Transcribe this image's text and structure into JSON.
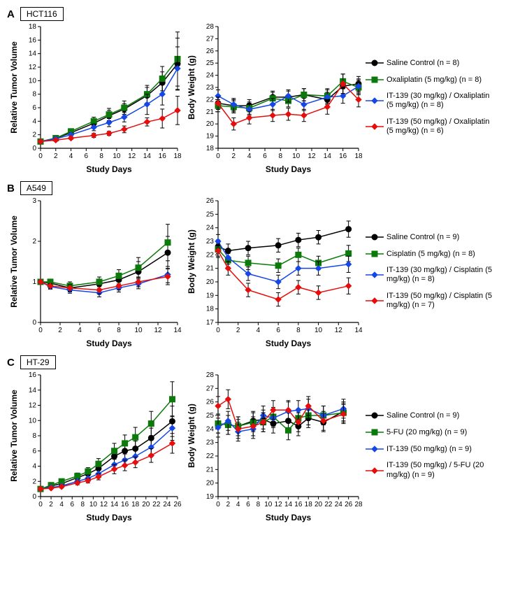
{
  "global": {
    "colors": {
      "saline": "#000000",
      "drug_ref": "#0b7a0b",
      "it30": "#1546e6",
      "it50": "#e60d0d",
      "axis": "#000000",
      "bg": "#ffffff"
    },
    "font_family": "Arial, sans-serif",
    "marker_size": 4,
    "line_width": 1.5,
    "error_cap": 3,
    "axis_tick_fontsize": 10,
    "axis_label_fontsize": 12,
    "panel_letter_fontsize": 15
  },
  "panels": [
    {
      "id": "A",
      "cell_line": "HCT116",
      "legend": [
        {
          "key": "saline",
          "marker": "circle",
          "label": "Saline Control (n = 8)"
        },
        {
          "key": "drug_ref",
          "marker": "square",
          "label": "Oxaliplatin (5 mg/kg) (n = 8)"
        },
        {
          "key": "it30",
          "marker": "diamond",
          "label": "IT-139 (30 mg/kg) / Oxaliplatin (5 mg/kg) (n = 8)"
        },
        {
          "key": "it50",
          "marker": "diamond",
          "label": "IT-139 (50 mg/kg) / Oxaliplatin (5 mg/kg) (n = 6)"
        }
      ],
      "left": {
        "x_label": "Study Days",
        "y_label": "Relative Tumor Volume",
        "xlim": [
          0,
          18
        ],
        "ylim": [
          0,
          18
        ],
        "x_ticks": [
          0,
          2,
          4,
          6,
          8,
          10,
          12,
          14,
          16,
          18
        ],
        "y_ticks": [
          0,
          2,
          4,
          6,
          8,
          10,
          12,
          14,
          16,
          18
        ],
        "x": [
          0,
          2,
          4,
          7,
          9,
          11,
          14,
          16,
          18
        ],
        "series": {
          "saline": {
            "y": [
              1,
              1.5,
              2.3,
              3.7,
              4.8,
              5.8,
              7.8,
              9.7,
              12.5
            ],
            "err": [
              0,
              0.2,
              0.3,
              0.6,
              0.8,
              0.8,
              1.2,
              1.6,
              3.8
            ]
          },
          "drug_ref": {
            "y": [
              1,
              1.5,
              2.5,
              4.0,
              5.0,
              6.0,
              8.0,
              10.3,
              13.2
            ],
            "err": [
              0,
              0.2,
              0.4,
              0.6,
              0.9,
              1.0,
              1.3,
              1.8,
              4.0
            ]
          },
          "it30": {
            "y": [
              1,
              1.4,
              2.0,
              3.1,
              3.8,
              4.6,
              6.5,
              8.0,
              11.8
            ],
            "err": [
              0,
              0.2,
              0.3,
              0.5,
              0.6,
              0.7,
              1.5,
              1.6,
              3.2
            ]
          },
          "it50": {
            "y": [
              1,
              1.2,
              1.5,
              1.9,
              2.2,
              2.8,
              3.9,
              4.4,
              5.6
            ],
            "err": [
              0,
              0.15,
              0.2,
              0.3,
              0.3,
              0.5,
              0.6,
              1.4,
              2.1
            ]
          }
        }
      },
      "right": {
        "x_label": "Study Days",
        "y_label": "Body Weight (g)",
        "xlim": [
          0,
          18
        ],
        "ylim": [
          18,
          28
        ],
        "x_ticks": [
          0,
          2,
          4,
          6,
          8,
          10,
          12,
          14,
          16,
          18
        ],
        "y_ticks": [
          18,
          19,
          20,
          21,
          22,
          23,
          24,
          25,
          26,
          27,
          28
        ],
        "x": [
          0,
          2,
          4,
          7,
          9,
          11,
          14,
          16,
          18
        ],
        "series": {
          "saline": {
            "y": [
              21.7,
              21.5,
              21.5,
              22.2,
              22.2,
              22.4,
              22.0,
              23.1,
              23.3
            ],
            "err": [
              0.5,
              0.5,
              0.5,
              0.5,
              0.5,
              0.5,
              0.6,
              0.6,
              0.6
            ]
          },
          "drug_ref": {
            "y": [
              21.5,
              21.4,
              21.3,
              22.1,
              21.9,
              22.4,
              22.3,
              23.5,
              23.0
            ],
            "err": [
              0.5,
              0.5,
              0.5,
              0.5,
              0.5,
              0.5,
              0.6,
              0.6,
              0.6
            ]
          },
          "it30": {
            "y": [
              22.3,
              21.6,
              21.2,
              21.6,
              22.3,
              21.6,
              22.2,
              22.3,
              23.1
            ],
            "err": [
              0.5,
              0.5,
              0.5,
              0.5,
              0.5,
              0.5,
              0.6,
              0.6,
              0.6
            ]
          },
          "it50": {
            "y": [
              21.7,
              20.0,
              20.5,
              20.7,
              20.8,
              20.7,
              21.4,
              23.3,
              22.0
            ],
            "err": [
              0.5,
              0.5,
              0.5,
              0.5,
              0.5,
              0.5,
              0.6,
              0.8,
              0.6
            ]
          }
        }
      }
    },
    {
      "id": "B",
      "cell_line": "A549",
      "legend": [
        {
          "key": "saline",
          "marker": "circle",
          "label": "Saline Control (n = 9)"
        },
        {
          "key": "drug_ref",
          "marker": "square",
          "label": "Cisplatin (5 mg/kg) (n = 8)"
        },
        {
          "key": "it30",
          "marker": "diamond",
          "label": "IT-139 (30 mg/kg) / Cisplatin (5 mg/kg) (n = 8)"
        },
        {
          "key": "it50",
          "marker": "diamond",
          "label": "IT-139 (50 mg/kg) / Cisplatin (5 mg/kg) (n = 7)"
        }
      ],
      "left": {
        "x_label": "Study Days",
        "y_label": "Relative Tumor Volume",
        "xlim": [
          0,
          14
        ],
        "ylim": [
          0,
          3
        ],
        "x_ticks": [
          0,
          2,
          4,
          6,
          8,
          10,
          12,
          14
        ],
        "y_ticks": [
          0,
          1,
          2,
          3
        ],
        "x": [
          0,
          1,
          3,
          6,
          8,
          10,
          13
        ],
        "series": {
          "saline": {
            "y": [
              1,
              0.97,
              0.85,
              0.95,
              1.05,
              1.25,
              1.72
            ],
            "err": [
              0,
              0.07,
              0.1,
              0.12,
              0.15,
              0.25,
              0.4
            ]
          },
          "drug_ref": {
            "y": [
              1,
              1.0,
              0.9,
              1.0,
              1.15,
              1.35,
              1.97
            ],
            "err": [
              0,
              0.07,
              0.1,
              0.12,
              0.15,
              0.25,
              0.45
            ]
          },
          "it30": {
            "y": [
              1,
              0.88,
              0.8,
              0.73,
              0.85,
              0.95,
              1.18
            ],
            "err": [
              0,
              0.06,
              0.08,
              0.1,
              0.1,
              0.12,
              0.2
            ]
          },
          "it50": {
            "y": [
              1,
              0.9,
              0.85,
              0.8,
              0.9,
              1.0,
              1.13
            ],
            "err": [
              0,
              0.06,
              0.08,
              0.1,
              0.1,
              0.12,
              0.2
            ]
          }
        }
      },
      "right": {
        "x_label": "Study Days",
        "y_label": "Body Weight (g)",
        "xlim": [
          0,
          14
        ],
        "ylim": [
          17,
          26
        ],
        "x_ticks": [
          0,
          2,
          4,
          6,
          8,
          10,
          12,
          14
        ],
        "y_ticks": [
          17,
          18,
          19,
          20,
          21,
          22,
          23,
          24,
          25,
          26
        ],
        "x": [
          0,
          1,
          3,
          6,
          8,
          10,
          13
        ],
        "series": {
          "saline": {
            "y": [
              22.6,
              22.3,
              22.5,
              22.7,
              23.1,
              23.3,
              23.9
            ],
            "err": [
              0.5,
              0.5,
              0.5,
              0.5,
              0.5,
              0.5,
              0.6
            ]
          },
          "drug_ref": {
            "y": [
              22.4,
              21.6,
              21.4,
              21.2,
              22.0,
              21.4,
              22.1
            ],
            "err": [
              0.5,
              0.5,
              0.5,
              0.5,
              0.5,
              0.5,
              0.6
            ]
          },
          "it30": {
            "y": [
              23.0,
              21.8,
              20.6,
              20.0,
              21.0,
              21.0,
              21.3
            ],
            "err": [
              0.5,
              0.5,
              0.5,
              0.5,
              0.5,
              0.5,
              0.6
            ]
          },
          "it50": {
            "y": [
              22.3,
              21.0,
              19.4,
              18.7,
              19.6,
              19.2,
              19.7
            ],
            "err": [
              0.5,
              0.5,
              0.5,
              0.5,
              0.5,
              0.5,
              0.6
            ]
          }
        }
      }
    },
    {
      "id": "C",
      "cell_line": "HT-29",
      "legend": [
        {
          "key": "saline",
          "marker": "circle",
          "label": "Saline Control (n = 9)"
        },
        {
          "key": "drug_ref",
          "marker": "square",
          "label": "5-FU (20 mg/kg) (n = 9)"
        },
        {
          "key": "it30",
          "marker": "diamond",
          "label": "IT-139 (50 mg/kg) (n = 9)"
        },
        {
          "key": "it50",
          "marker": "diamond",
          "label": "IT-139 (50 mg/kg) / 5-FU (20 mg/kg) (n = 9)"
        }
      ],
      "left": {
        "x_label": "Study Days",
        "y_label": "Relative Tumor Volume",
        "xlim": [
          0,
          26
        ],
        "ylim": [
          0,
          16
        ],
        "x_ticks": [
          0,
          2,
          4,
          6,
          8,
          10,
          12,
          14,
          16,
          18,
          20,
          22,
          24,
          26
        ],
        "y_ticks": [
          0,
          2,
          4,
          6,
          8,
          10,
          12,
          14,
          16
        ],
        "x": [
          0,
          2,
          4,
          7,
          9,
          11,
          14,
          16,
          18,
          21,
          25
        ],
        "series": {
          "saline": {
            "y": [
              1,
              1.4,
              1.7,
              2.5,
              3.0,
              3.7,
              5.3,
              6.0,
              6.3,
              7.7,
              9.9
            ],
            "err": [
              0,
              0.2,
              0.25,
              0.4,
              0.5,
              0.6,
              0.9,
              1.0,
              1.0,
              1.3,
              2.0
            ]
          },
          "drug_ref": {
            "y": [
              1,
              1.5,
              2.0,
              2.7,
              3.3,
              4.3,
              6.0,
              7.0,
              7.8,
              9.6,
              12.8
            ],
            "err": [
              0,
              0.2,
              0.3,
              0.4,
              0.5,
              0.7,
              1.0,
              1.1,
              1.3,
              1.6,
              2.3
            ]
          },
          "it30": {
            "y": [
              1,
              1.2,
              1.4,
              2.0,
              2.4,
              3.0,
              4.2,
              4.8,
              5.3,
              6.5,
              9.0
            ],
            "err": [
              0,
              0.15,
              0.2,
              0.3,
              0.35,
              0.5,
              0.7,
              0.8,
              0.8,
              1.0,
              1.6
            ]
          },
          "it50": {
            "y": [
              1,
              1.1,
              1.3,
              1.8,
              2.1,
              2.6,
              3.6,
              4.1,
              4.5,
              5.4,
              7.0
            ],
            "err": [
              0,
              0.15,
              0.18,
              0.25,
              0.3,
              0.4,
              0.6,
              0.7,
              0.7,
              0.9,
              1.3
            ]
          }
        }
      },
      "right": {
        "x_label": "Study Days",
        "y_label": "Body Weight (g)",
        "xlim": [
          0,
          28
        ],
        "ylim": [
          19,
          28
        ],
        "x_ticks": [
          0,
          2,
          4,
          6,
          8,
          10,
          12,
          14,
          16,
          18,
          20,
          22,
          24,
          26,
          28
        ],
        "y_ticks": [
          19,
          20,
          21,
          22,
          23,
          24,
          25,
          26,
          27,
          28
        ],
        "x": [
          0,
          2,
          4,
          7,
          9,
          11,
          14,
          16,
          18,
          21,
          25
        ],
        "series": {
          "saline": {
            "y": [
              24.4,
              24.3,
              24.2,
              24.6,
              24.7,
              24.4,
              24.6,
              24.2,
              24.8,
              24.5,
              25.3
            ],
            "err": [
              0.7,
              0.7,
              0.7,
              0.7,
              0.7,
              0.7,
              0.7,
              0.7,
              0.7,
              0.7,
              0.7
            ]
          },
          "drug_ref": {
            "y": [
              24.4,
              24.3,
              24.2,
              24.5,
              24.5,
              24.9,
              23.9,
              24.8,
              25.0,
              25.0,
              25.2
            ],
            "err": [
              0.7,
              0.7,
              0.7,
              0.7,
              0.7,
              0.7,
              0.7,
              0.7,
              0.7,
              0.7,
              0.7
            ]
          },
          "it30": {
            "y": [
              24.1,
              24.6,
              23.8,
              24.0,
              25.0,
              24.8,
              25.3,
              25.4,
              25.5,
              25.0,
              25.5
            ],
            "err": [
              0.7,
              0.7,
              0.7,
              0.7,
              0.7,
              0.7,
              0.7,
              0.7,
              0.7,
              0.7,
              0.7
            ]
          },
          "it50": {
            "y": [
              25.7,
              26.2,
              24.0,
              24.2,
              24.5,
              25.4,
              25.4,
              24.5,
              25.7,
              24.6,
              25.1
            ],
            "err": [
              0.7,
              0.7,
              0.7,
              0.7,
              0.7,
              0.7,
              0.7,
              0.7,
              0.7,
              0.7,
              0.7
            ]
          }
        }
      }
    }
  ]
}
